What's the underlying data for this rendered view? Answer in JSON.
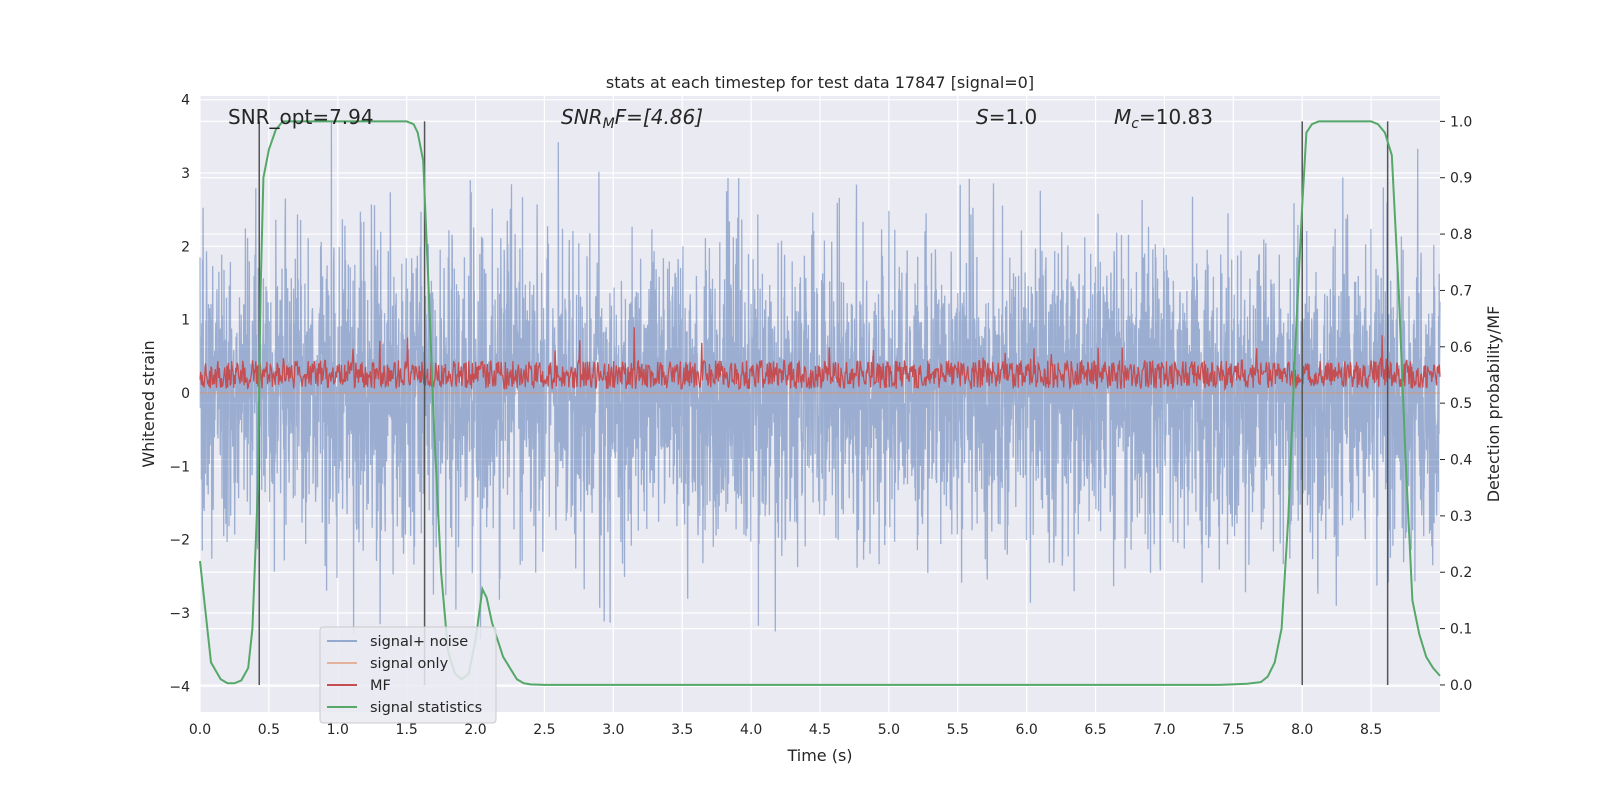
{
  "chart_data": {
    "type": "line",
    "title": "stats at each timestep for test data 17847 [signal=0]",
    "xlabel": "Time (s)",
    "ylabel_left": "Whitened strain",
    "ylabel_right": "Detection probability/MF",
    "xlim": [
      0.0,
      9.0
    ],
    "ylim_left": [
      -4.35,
      4.05
    ],
    "ylim_right": [
      -0.048,
      1.045
    ],
    "x_ticks": [
      "0.0",
      "0.5",
      "1.0",
      "1.5",
      "2.0",
      "2.5",
      "3.0",
      "3.5",
      "4.0",
      "4.5",
      "5.0",
      "5.5",
      "6.0",
      "6.5",
      "7.0",
      "7.5",
      "8.0",
      "8.5"
    ],
    "y_left_ticks": [
      "−4",
      "−3",
      "−2",
      "−1",
      "0",
      "1",
      "2",
      "3",
      "4"
    ],
    "y_right_ticks": [
      "0.0",
      "0.1",
      "0.2",
      "0.3",
      "0.4",
      "0.5",
      "0.6",
      "0.7",
      "0.8",
      "0.9",
      "1.0"
    ],
    "grid": true,
    "legend_position": "lower-left",
    "colors": {
      "background": "#eaeaf2",
      "grid": "#ffffff",
      "signal_noise": "#4c72b0",
      "signal_only": "#dd8452",
      "mf": "#c44e52",
      "signal_statistics": "#55a868",
      "vlines": "#555555"
    },
    "annotations": {
      "snr_opt": "SNR_opt=7.94",
      "snr_mf_main": "SNR",
      "snr_mf_sub": "M",
      "snr_mf_rest": "F=[4.86]",
      "s_main": "S",
      "s_rest": "=1.0",
      "mc_main": "M",
      "mc_sub": "c",
      "mc_rest": "=10.83"
    },
    "vertical_lines_x": [
      0.43,
      1.63,
      8.0,
      8.62
    ],
    "series": [
      {
        "name": "signal+ noise",
        "color": "#4c72b0",
        "alpha": 0.5,
        "description": "whitened noise, approx amplitude ±3.7",
        "seed": 17847,
        "points": 4400,
        "sigma": 1.0
      },
      {
        "name": "signal only",
        "color": "#dd8452",
        "values_constant": 0.0
      },
      {
        "name": "MF",
        "color": "#c44e52",
        "axis": "left",
        "baseline": 0.25,
        "spread": 0.3,
        "points": 1800
      },
      {
        "name": "signal statistics",
        "color": "#55a868",
        "axis": "right",
        "x": [
          0.0,
          0.08,
          0.15,
          0.2,
          0.25,
          0.3,
          0.35,
          0.38,
          0.42,
          0.44,
          0.46,
          0.5,
          0.55,
          0.6,
          0.65,
          0.7,
          0.8,
          1.0,
          1.2,
          1.4,
          1.5,
          1.55,
          1.58,
          1.62,
          1.66,
          1.7,
          1.75,
          1.8,
          1.85,
          1.9,
          1.95,
          2.0,
          2.05,
          2.08,
          2.12,
          2.2,
          2.3,
          2.35,
          2.4,
          2.5,
          2.6,
          3.0,
          4.0,
          5.0,
          6.0,
          7.0,
          7.4,
          7.6,
          7.7,
          7.75,
          7.8,
          7.85,
          7.9,
          7.95,
          8.0,
          8.03,
          8.07,
          8.12,
          8.2,
          8.5,
          8.55,
          8.6,
          8.65,
          8.7,
          8.75,
          8.8,
          8.85,
          8.9,
          8.95,
          9.0
        ],
        "values": [
          0.22,
          0.04,
          0.01,
          0.003,
          0.003,
          0.008,
          0.03,
          0.1,
          0.35,
          0.7,
          0.9,
          0.95,
          0.985,
          1.0,
          1.0,
          1.0,
          1.0,
          1.0,
          1.0,
          1.0,
          1.0,
          0.995,
          0.98,
          0.93,
          0.7,
          0.45,
          0.2,
          0.06,
          0.02,
          0.01,
          0.02,
          0.08,
          0.17,
          0.155,
          0.11,
          0.05,
          0.01,
          0.003,
          0.001,
          0.0,
          0.0,
          0.0,
          0.0,
          0.0,
          0.0,
          0.0,
          0.0,
          0.002,
          0.005,
          0.015,
          0.04,
          0.1,
          0.3,
          0.6,
          0.85,
          0.98,
          0.995,
          1.0,
          1.0,
          1.0,
          0.995,
          0.98,
          0.94,
          0.7,
          0.4,
          0.15,
          0.09,
          0.05,
          0.03,
          0.016
        ]
      }
    ]
  }
}
